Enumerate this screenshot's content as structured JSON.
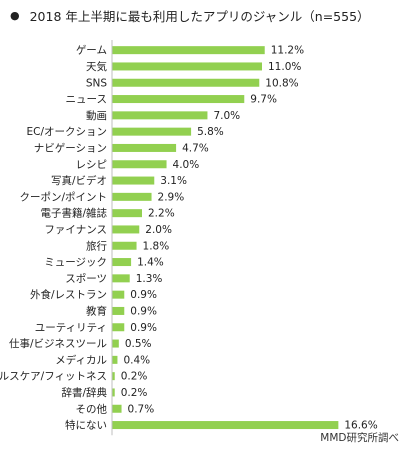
{
  "title": {
    "bullet": "●",
    "text": "2018 年上半期に最も利用したアプリのジャンル（n=555）"
  },
  "source": "MMD研究所調べ",
  "colors": {
    "bar": "#92d050",
    "axis": "#bfbfbf"
  },
  "chart_data": {
    "type": "bar",
    "orientation": "horizontal",
    "title": "2018 年上半期に最も利用したアプリのジャンル（n=555）",
    "categories": [
      "ゲーム",
      "天気",
      "SNS",
      "ニュース",
      "動画",
      "EC/オークション",
      "ナビゲーション",
      "レシピ",
      "写真/ビデオ",
      "クーポン/ポイント",
      "電子書籍/雑誌",
      "ファイナンス",
      "旅行",
      "ミュージック",
      "スポーツ",
      "外食/レストラン",
      "教育",
      "ユーティリティ",
      "仕事/ビジネスツール",
      "メディカル",
      "ヘルスケア/フィットネス",
      "辞書/辞典",
      "その他",
      "特にない"
    ],
    "values": [
      11.2,
      11.0,
      10.8,
      9.7,
      7.0,
      5.8,
      4.7,
      4.0,
      3.1,
      2.9,
      2.2,
      2.0,
      1.8,
      1.4,
      1.3,
      0.9,
      0.9,
      0.9,
      0.5,
      0.4,
      0.2,
      0.2,
      0.7,
      16.6
    ],
    "value_labels": [
      "11.2%",
      "11.0%",
      "10.8%",
      "9.7%",
      "7.0%",
      "5.8%",
      "4.7%",
      "4.0%",
      "3.1%",
      "2.9%",
      "2.2%",
      "2.0%",
      "1.8%",
      "1.4%",
      "1.3%",
      "0.9%",
      "0.9%",
      "0.9%",
      "0.5%",
      "0.4%",
      "0.2%",
      "0.2%",
      "0.7%",
      "16.6%"
    ],
    "unit": "%",
    "xlim": [
      0,
      17.6
    ],
    "grid": false,
    "legend": "none"
  }
}
